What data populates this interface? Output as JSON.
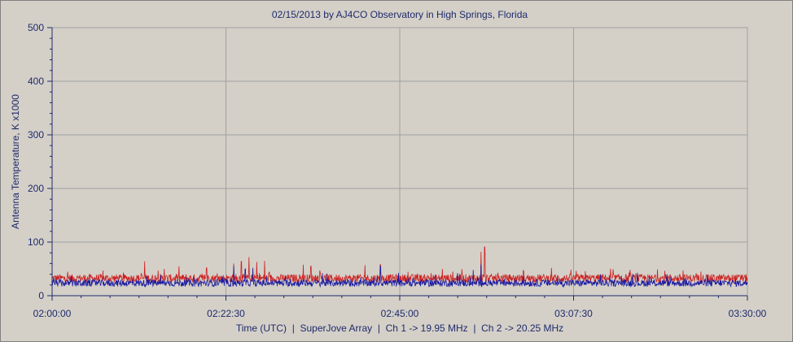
{
  "chart_data": {
    "type": "line",
    "title": "02/15/2013  by  AJ4CO Observatory  in  High Springs, Florida",
    "xlabel": "Time (UTC)  |  SuperJove Array  |  Ch 1 -> 19.95 MHz  |  Ch 2 -> 20.25 MHz",
    "ylabel": "Antenna Temperature, K x1000",
    "x_tick_labels": [
      "02:00:00",
      "02:22:30",
      "02:45:00",
      "03:07:30",
      "03:30:00"
    ],
    "y_tick_labels": [
      "0",
      "100",
      "200",
      "300",
      "400",
      "500"
    ],
    "x_range_minutes": [
      0,
      90
    ],
    "ylim": [
      0,
      500
    ],
    "grid": true,
    "legend": "none",
    "colors": {
      "ch1": "#cc2222",
      "ch2": "#1a1aa0",
      "axis": "#1f2a6b",
      "grid": "#a0a0a0",
      "plot_bg": "#d4d0c8"
    },
    "series": [
      {
        "channel": "Ch 1",
        "baseline_mean": 31,
        "noise_range": [
          25,
          40
        ],
        "spikes": [
          {
            "t": 12,
            "v": 64
          },
          {
            "t": 14.5,
            "v": 50
          },
          {
            "t": 20,
            "v": 52
          },
          {
            "t": 23.5,
            "v": 60
          },
          {
            "t": 24.5,
            "v": 64
          },
          {
            "t": 25.5,
            "v": 72
          },
          {
            "t": 26.5,
            "v": 63
          },
          {
            "t": 27.5,
            "v": 65
          },
          {
            "t": 32.5,
            "v": 58
          },
          {
            "t": 33.5,
            "v": 55
          },
          {
            "t": 40.5,
            "v": 57
          },
          {
            "t": 42.5,
            "v": 58
          },
          {
            "t": 50.5,
            "v": 50
          },
          {
            "t": 55.5,
            "v": 82
          },
          {
            "t": 56,
            "v": 91
          },
          {
            "t": 61,
            "v": 47
          },
          {
            "t": 69,
            "v": 46
          },
          {
            "t": 84,
            "v": 45
          }
        ]
      },
      {
        "channel": "Ch 2",
        "baseline_mean": 23,
        "noise_range": [
          17,
          30
        ],
        "spikes": [
          {
            "t": 23.5,
            "v": 56
          },
          {
            "t": 25,
            "v": 50
          },
          {
            "t": 26,
            "v": 52
          },
          {
            "t": 42.5,
            "v": 55
          },
          {
            "t": 54.5,
            "v": 48
          },
          {
            "t": 55.5,
            "v": 58
          },
          {
            "t": 35,
            "v": 42
          },
          {
            "t": 71,
            "v": 40
          }
        ]
      }
    ]
  }
}
